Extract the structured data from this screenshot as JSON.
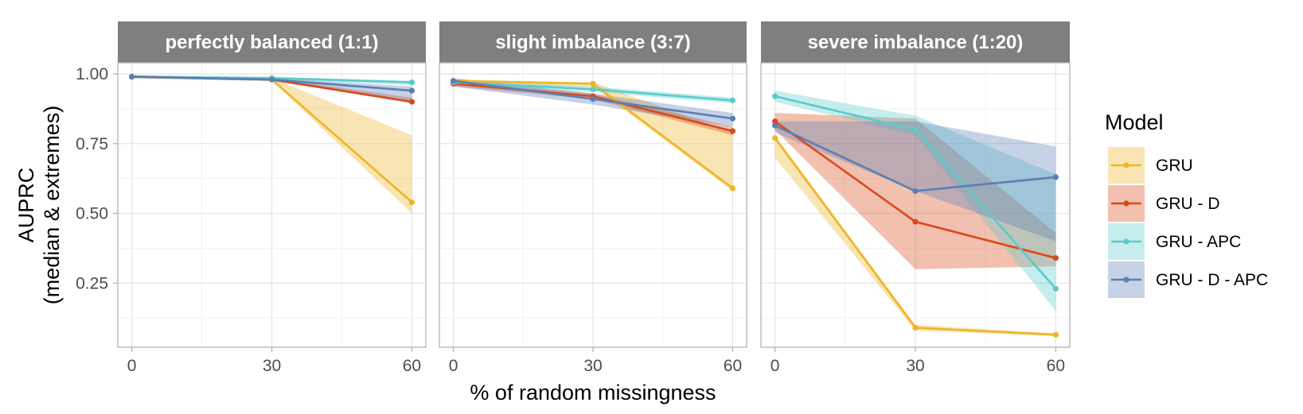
{
  "chart_data": {
    "type": "line",
    "xlabel": "% of random missingness",
    "ylabel_line1": "AUPRC",
    "ylabel_line2": "(median & extremes)",
    "x": [
      0,
      30,
      60
    ],
    "x_ticks": [
      "0",
      "30",
      "60"
    ],
    "y_ticks": [
      "1.00",
      "0.75",
      "0.50",
      "0.25"
    ],
    "y_tick_values": [
      1.0,
      0.75,
      0.5,
      0.25
    ],
    "xlim": [
      -3,
      63
    ],
    "ylim": [
      0.02,
      1.04
    ],
    "grid": true,
    "legend": {
      "title": "Model",
      "position": "right",
      "entries": [
        "GRU",
        "GRU - D",
        "GRU - APC",
        "GRU - D - APC"
      ]
    },
    "colors": {
      "GRU": "#EFB525",
      "GRU - D": "#D84A1B",
      "GRU - APC": "#5CCACB",
      "GRU - D - APC": "#5B7FB4",
      "strip": "#7F7F7F",
      "panel_border": "#B3B3B3",
      "grid": "#E6E6E6"
    },
    "panels": [
      {
        "title": "perfectly balanced (1:1)",
        "series": [
          {
            "name": "GRU",
            "median": [
              0.99,
              0.98,
              0.54
            ],
            "lower": [
              0.985,
              0.975,
              0.5
            ],
            "upper": [
              0.995,
              0.985,
              0.78
            ]
          },
          {
            "name": "GRU - D",
            "median": [
              0.99,
              0.98,
              0.9
            ],
            "lower": [
              0.985,
              0.975,
              0.895
            ],
            "upper": [
              0.995,
              0.985,
              0.915
            ]
          },
          {
            "name": "GRU - APC",
            "median": [
              0.99,
              0.985,
              0.97
            ],
            "lower": [
              0.985,
              0.98,
              0.96
            ],
            "upper": [
              0.995,
              0.99,
              0.975
            ]
          },
          {
            "name": "GRU - D - APC",
            "median": [
              0.99,
              0.98,
              0.94
            ],
            "lower": [
              0.985,
              0.975,
              0.9
            ],
            "upper": [
              0.995,
              0.985,
              0.955
            ]
          }
        ]
      },
      {
        "title": "slight imbalance (3:7)",
        "series": [
          {
            "name": "GRU",
            "median": [
              0.975,
              0.965,
              0.59
            ],
            "lower": [
              0.96,
              0.955,
              0.58
            ],
            "upper": [
              0.98,
              0.97,
              0.79
            ]
          },
          {
            "name": "GRU - D",
            "median": [
              0.965,
              0.92,
              0.795
            ],
            "lower": [
              0.955,
              0.91,
              0.78
            ],
            "upper": [
              0.975,
              0.93,
              0.81
            ]
          },
          {
            "name": "GRU - APC",
            "median": [
              0.97,
              0.945,
              0.905
            ],
            "lower": [
              0.96,
              0.935,
              0.895
            ],
            "upper": [
              0.98,
              0.955,
              0.915
            ]
          },
          {
            "name": "GRU - D - APC",
            "median": [
              0.975,
              0.91,
              0.84
            ],
            "lower": [
              0.955,
              0.89,
              0.81
            ],
            "upper": [
              0.985,
              0.93,
              0.86
            ]
          }
        ]
      },
      {
        "title": "severe imbalance (1:20)",
        "series": [
          {
            "name": "GRU",
            "median": [
              0.77,
              0.09,
              0.065
            ],
            "lower": [
              0.7,
              0.08,
              0.06
            ],
            "upper": [
              0.78,
              0.1,
              0.07
            ]
          },
          {
            "name": "GRU - D",
            "median": [
              0.83,
              0.47,
              0.34
            ],
            "lower": [
              0.8,
              0.3,
              0.31
            ],
            "upper": [
              0.86,
              0.84,
              0.43
            ]
          },
          {
            "name": "GRU - APC",
            "median": [
              0.92,
              0.8,
              0.23
            ],
            "lower": [
              0.9,
              0.78,
              0.15
            ],
            "upper": [
              0.94,
              0.85,
              0.64
            ]
          },
          {
            "name": "GRU - D - APC",
            "median": [
              0.815,
              0.58,
              0.63
            ],
            "lower": [
              0.79,
              0.58,
              0.4
            ],
            "upper": [
              0.83,
              0.83,
              0.74
            ]
          }
        ]
      }
    ]
  }
}
